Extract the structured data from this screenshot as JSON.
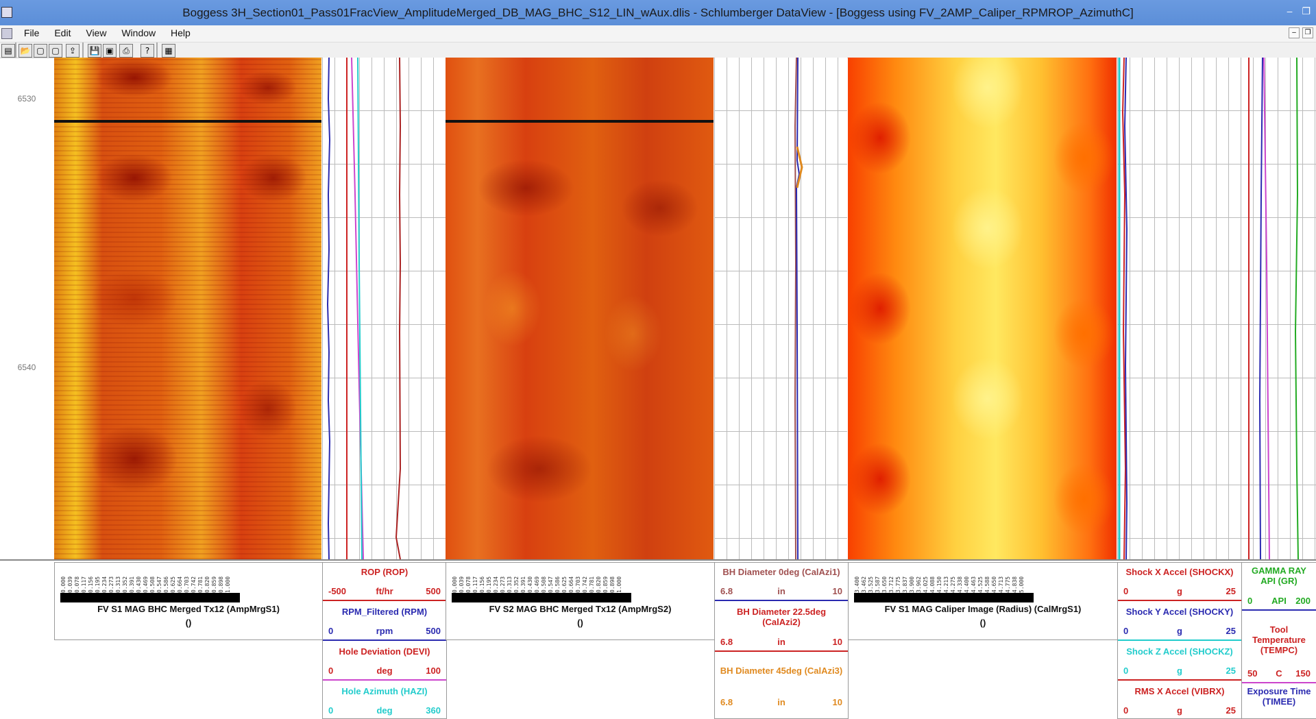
{
  "window": {
    "title": "Boggess 3H_Section01_Pass01FracView_AmplitudeMerged_DB_MAG_BHC_S12_LIN_wAux.dlis - Schlumberger  DataView - [Boggess   using   FV_2AMP_Caliper_RPMROP_AzimuthC]",
    "controls": {
      "minimize": "–",
      "restore": "❐",
      "close": "✕"
    }
  },
  "menu": {
    "items": [
      "File",
      "Edit",
      "View",
      "Window",
      "Help"
    ],
    "mdi": {
      "minimize": "–",
      "restore": "❐"
    }
  },
  "toolbar": {
    "icons": [
      "new-icon",
      "open-icon",
      "blank-icon",
      "blank-icon",
      "export-icon",
      "save-icon",
      "save-as-icon",
      "print-icon",
      "help-icon",
      "layout-icon"
    ],
    "glyphs": [
      "▤",
      "📂",
      "▢",
      "▢",
      "⇪",
      "💾",
      "▣",
      "⎙",
      "?",
      "▦"
    ]
  },
  "depth_labels": [
    "6530",
    "6540"
  ],
  "tracks": {
    "amp_s1": {
      "ticks": [
        "0.000",
        "0.039",
        "0.078",
        "0.117",
        "0.156",
        "0.195",
        "0.234",
        "0.273",
        "0.313",
        "0.352",
        "0.391",
        "0.430",
        "0.469",
        "0.508",
        "0.547",
        "0.586",
        "0.625",
        "0.664",
        "0.703",
        "0.742",
        "0.781",
        "0.820",
        "0.859",
        "0.898",
        "1.000"
      ],
      "name": "FV S1 MAG BHC Merged Tx12 (AmpMrgS1)",
      "unit": "()"
    },
    "amp_s2": {
      "ticks": [
        "0.000",
        "0.039",
        "0.078",
        "0.117",
        "0.156",
        "0.195",
        "0.234",
        "0.273",
        "0.313",
        "0.352",
        "0.391",
        "0.430",
        "0.469",
        "0.508",
        "0.547",
        "0.586",
        "0.625",
        "0.664",
        "0.703",
        "0.742",
        "0.781",
        "0.820",
        "0.859",
        "0.898",
        "1.000"
      ],
      "name": "FV S2 MAG BHC Merged Tx12 (AmpMrgS2)",
      "unit": "()"
    },
    "caliper": {
      "ticks": [
        "3.400",
        "3.462",
        "3.525",
        "3.587",
        "3.650",
        "3.712",
        "3.775",
        "3.837",
        "3.900",
        "3.962",
        "4.025",
        "4.088",
        "4.150",
        "4.213",
        "4.275",
        "4.338",
        "4.400",
        "4.463",
        "4.525",
        "4.588",
        "4.650",
        "4.713",
        "4.775",
        "4.838",
        "5.000"
      ],
      "name": "FV S1 MAG Caliper Image (Radius) (CalMrgS1)",
      "unit": "()"
    }
  },
  "curve_headers": {
    "rop": {
      "name": "ROP (ROP)",
      "min": "-500",
      "unit": "ft/hr",
      "max": "500",
      "color": "#cc2222"
    },
    "rpm": {
      "name": "RPM_Filtered (RPM)",
      "min": "0",
      "unit": "rpm",
      "max": "500",
      "color": "#2a2ab0"
    },
    "devi": {
      "name": "Hole Deviation (DEVI)",
      "min": "0",
      "unit": "deg",
      "max": "100",
      "color": "#cc2222"
    },
    "hazi": {
      "name": "Hole Azimuth (HAZI)",
      "min": "0",
      "unit": "deg",
      "max": "360",
      "color": "#22cccc"
    },
    "cal1": {
      "name": "BH Diameter 0deg (CalAzi1)",
      "min": "6.8",
      "unit": "in",
      "max": "10",
      "color": "#a05050"
    },
    "cal2": {
      "name": "BH Diameter 22.5deg (CalAzi2)",
      "min": "6.8",
      "unit": "in",
      "max": "10",
      "color": "#cc2222"
    },
    "cal3": {
      "name": "BH Diameter 45deg (CalAzi3)",
      "min": "6.8",
      "unit": "in",
      "max": "10",
      "color": "#e08a20"
    },
    "shockx": {
      "name": "Shock X Accel (SHOCKX)",
      "min": "0",
      "unit": "g",
      "max": "25",
      "color": "#cc2222"
    },
    "shocky": {
      "name": "Shock Y Accel (SHOCKY)",
      "min": "0",
      "unit": "g",
      "max": "25",
      "color": "#2a2ab0"
    },
    "shockz": {
      "name": "Shock Z Accel (SHOCKZ)",
      "min": "0",
      "unit": "g",
      "max": "25",
      "color": "#22cccc"
    },
    "vibrx": {
      "name": "RMS X Accel (VIBRX)",
      "min": "0",
      "unit": "g",
      "max": "25",
      "color": "#cc2222"
    },
    "gr": {
      "name": "GAMMA RAY API (GR)",
      "min": "0",
      "unit": "API",
      "max": "200",
      "color": "#22aa22"
    },
    "tempc": {
      "name": "Tool Temperature (TEMPC)",
      "min": "50",
      "unit": "C",
      "max": "150",
      "color": "#cc2222"
    },
    "timee": {
      "name": "Exposure Time (TIMEE)",
      "color": "#2a2ab0"
    }
  }
}
